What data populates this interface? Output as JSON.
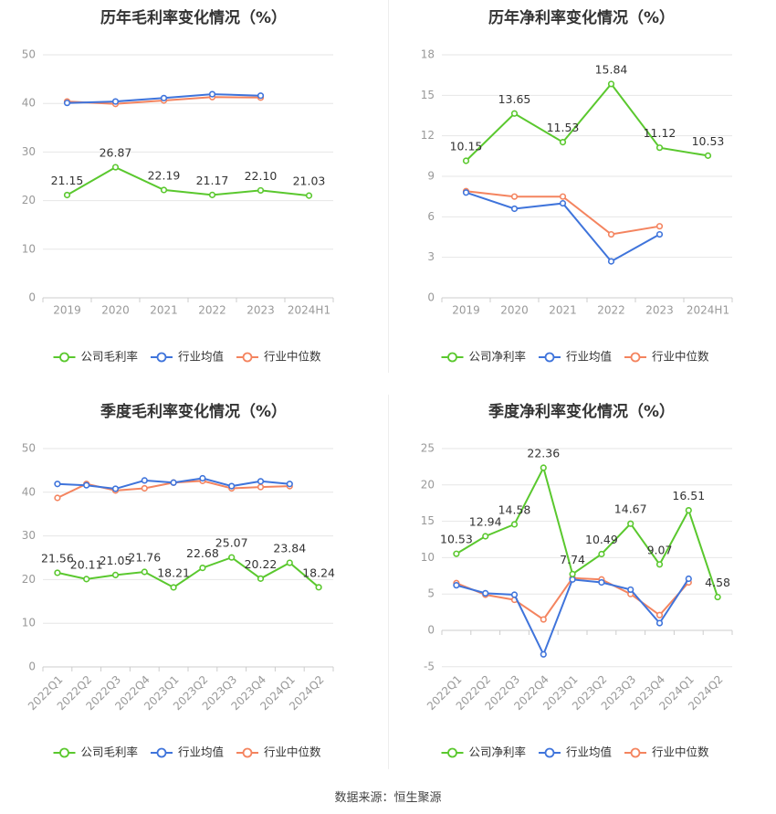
{
  "colors": {
    "company": "#5ac82e",
    "avg": "#3f74db",
    "median": "#f4845f",
    "grid": "#e6e6e6",
    "axis": "#cccccc",
    "tick": "#999999",
    "title": "#333333"
  },
  "legend": {
    "company_gross": "公司毛利率",
    "company_net": "公司净利率",
    "avg": "行业均值",
    "median": "行业中位数"
  },
  "source": "数据来源：恒生聚源",
  "chart_data": [
    {
      "id": "annual-gross",
      "type": "line",
      "title": "历年毛利率变化情况（%）",
      "categories": [
        "2019",
        "2020",
        "2021",
        "2022",
        "2023",
        "2024H1"
      ],
      "ylim": [
        0,
        50
      ],
      "yticks": [
        0,
        10,
        20,
        30,
        40,
        50
      ],
      "rotate_x": false,
      "series": [
        {
          "name": "公司毛利率",
          "key": "company",
          "values": [
            21.15,
            26.87,
            22.19,
            21.17,
            22.1,
            21.03
          ],
          "labels": [
            "21.15",
            "26.87",
            "22.19",
            "21.17",
            "22.10",
            "21.03"
          ]
        },
        {
          "name": "行业均值",
          "key": "avg",
          "values": [
            40.1,
            40.4,
            41.1,
            41.9,
            41.6,
            null
          ]
        },
        {
          "name": "行业中位数",
          "key": "median",
          "values": [
            40.4,
            39.9,
            40.6,
            41.3,
            41.2,
            null
          ]
        }
      ]
    },
    {
      "id": "annual-net",
      "type": "line",
      "title": "历年净利率变化情况（%）",
      "categories": [
        "2019",
        "2020",
        "2021",
        "2022",
        "2023",
        "2024H1"
      ],
      "ylim": [
        0,
        18
      ],
      "yticks": [
        0,
        3,
        6,
        9,
        12,
        15,
        18
      ],
      "rotate_x": false,
      "series": [
        {
          "name": "公司净利率",
          "key": "company",
          "values": [
            10.15,
            13.65,
            11.53,
            15.84,
            11.12,
            10.53
          ],
          "labels": [
            "10.15",
            "13.65",
            "11.53",
            "15.84",
            "11.12",
            "10.53"
          ]
        },
        {
          "name": "行业均值",
          "key": "avg",
          "values": [
            7.8,
            6.6,
            7.0,
            2.7,
            4.7,
            null
          ]
        },
        {
          "name": "行业中位数",
          "key": "median",
          "values": [
            7.9,
            7.5,
            7.5,
            4.7,
            5.3,
            null
          ]
        }
      ]
    },
    {
      "id": "quarterly-gross",
      "type": "line",
      "title": "季度毛利率变化情况（%）",
      "categories": [
        "2022Q1",
        "2022Q2",
        "2022Q3",
        "2022Q4",
        "2023Q1",
        "2023Q2",
        "2023Q3",
        "2023Q4",
        "2024Q1",
        "2024Q2"
      ],
      "ylim": [
        0,
        50
      ],
      "yticks": [
        0,
        10,
        20,
        30,
        40,
        50
      ],
      "rotate_x": true,
      "series": [
        {
          "name": "公司毛利率",
          "key": "company",
          "values": [
            21.56,
            20.11,
            21.05,
            21.76,
            18.21,
            22.68,
            25.07,
            20.22,
            23.84,
            18.24
          ],
          "labels": [
            "21.56",
            "20.11",
            "21.05",
            "21.76",
            "18.21",
            "22.68",
            "25.07",
            "20.22",
            "23.84",
            "18.24"
          ]
        },
        {
          "name": "行业均值",
          "key": "avg",
          "values": [
            41.9,
            41.6,
            40.8,
            42.7,
            42.2,
            43.2,
            41.4,
            42.5,
            41.9,
            null
          ]
        },
        {
          "name": "行业中位数",
          "key": "median",
          "values": [
            38.7,
            41.9,
            40.4,
            40.9,
            42.2,
            42.6,
            40.9,
            41.2,
            41.4,
            null
          ]
        }
      ]
    },
    {
      "id": "quarterly-net",
      "type": "line",
      "title": "季度净利率变化情况（%）",
      "categories": [
        "2022Q1",
        "2022Q2",
        "2022Q3",
        "2022Q4",
        "2023Q1",
        "2023Q2",
        "2023Q3",
        "2023Q4",
        "2024Q1",
        "2024Q2"
      ],
      "ylim": [
        -5,
        25
      ],
      "yticks": [
        -5,
        0,
        5,
        10,
        15,
        20,
        25
      ],
      "rotate_x": true,
      "series": [
        {
          "name": "公司净利率",
          "key": "company",
          "values": [
            10.53,
            12.94,
            14.58,
            22.36,
            7.74,
            10.49,
            14.67,
            9.07,
            16.51,
            4.58
          ],
          "labels": [
            "10.53",
            "12.94",
            "14.58",
            "22.36",
            "7.74",
            "10.49",
            "14.67",
            "9.07",
            "16.51",
            "4.58"
          ]
        },
        {
          "name": "行业均值",
          "key": "avg",
          "values": [
            6.2,
            5.1,
            4.9,
            -3.3,
            7.0,
            6.6,
            5.6,
            1.0,
            7.1,
            null
          ]
        },
        {
          "name": "行业中位数",
          "key": "median",
          "values": [
            6.5,
            4.9,
            4.2,
            1.5,
            7.2,
            7.0,
            5.0,
            2.1,
            6.6,
            null
          ]
        }
      ]
    }
  ]
}
